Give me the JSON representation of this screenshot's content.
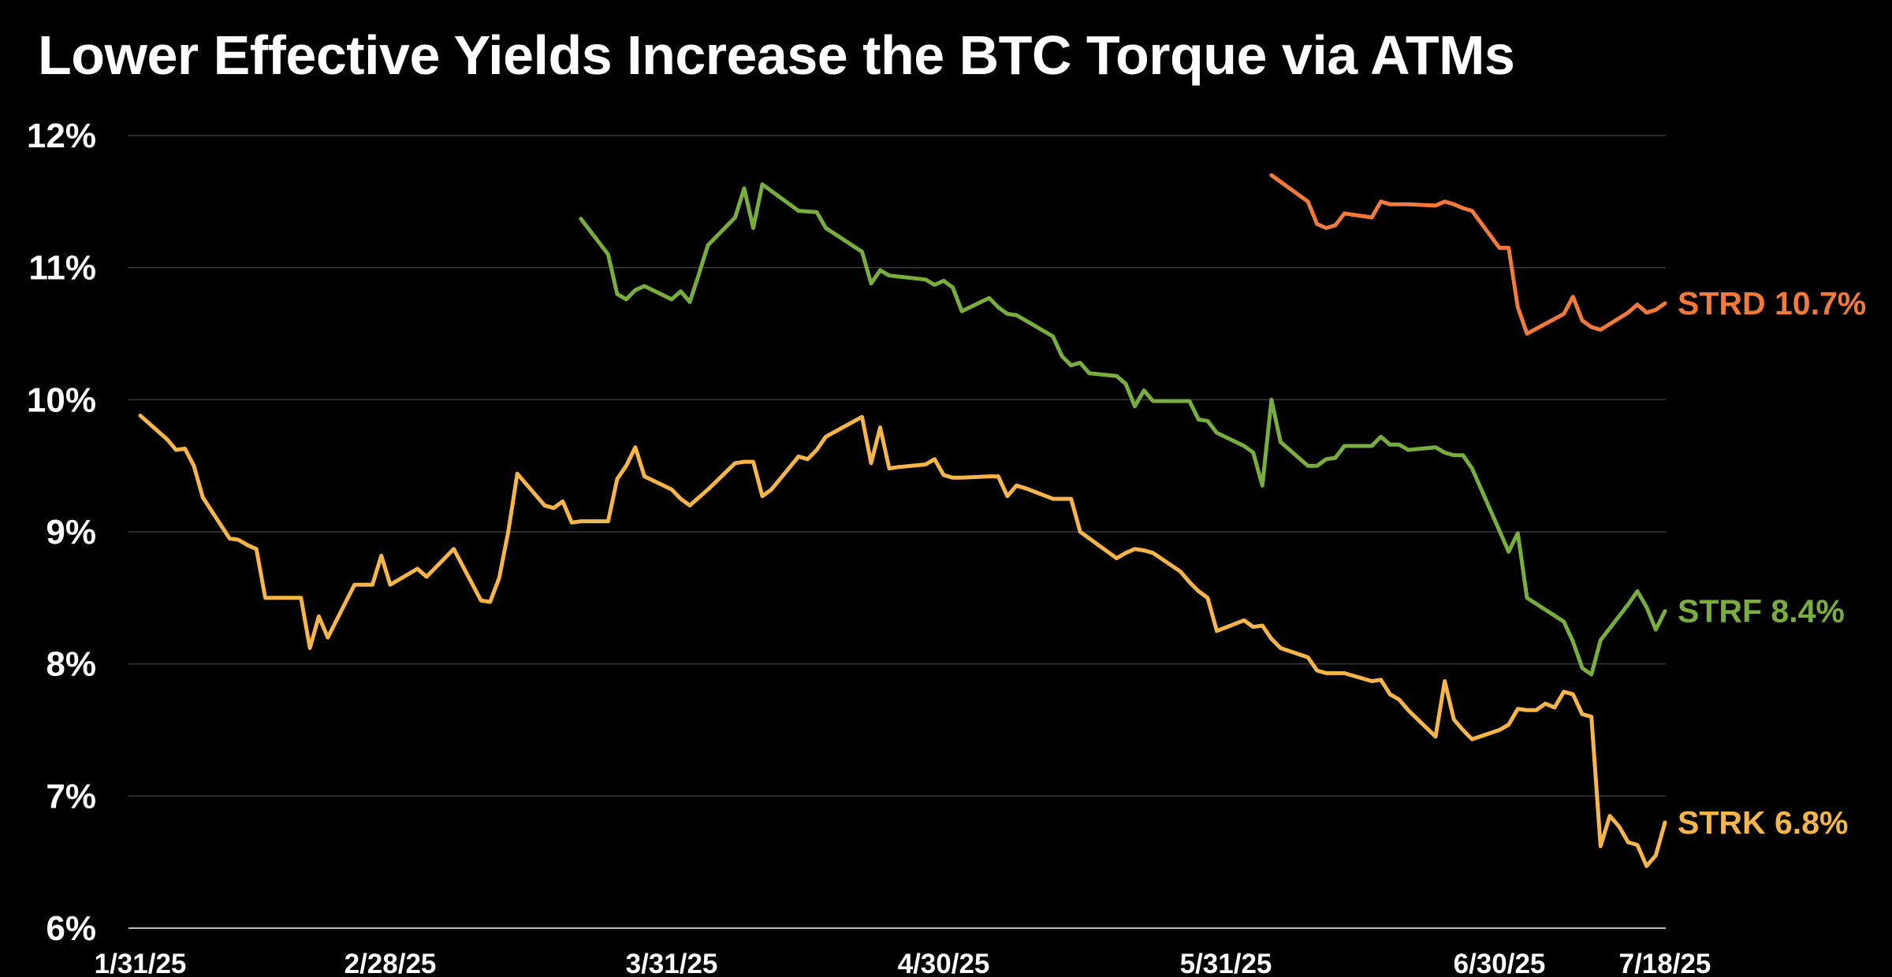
{
  "chart_data": {
    "type": "line",
    "title": "Lower Effective Yields Increase the BTC Torque via ATMs",
    "xlabel": "",
    "ylabel": "",
    "ylim": [
      6,
      12
    ],
    "y_ticks": [
      "6%",
      "7%",
      "8%",
      "9%",
      "10%",
      "11%",
      "12%"
    ],
    "x_ticks": [
      "1/31/25",
      "2/28/25",
      "3/31/25",
      "4/30/25",
      "5/31/25",
      "6/30/25",
      "7/18/25"
    ],
    "grid": "horizontal",
    "colors": {
      "STRD": "#F27A3C",
      "STRF": "#79AD3E",
      "STRK": "#F7B54A"
    },
    "series": [
      {
        "name": "STRD",
        "end_label": "STRD 10.7%",
        "points": [
          [
            "2025-06-05",
            11.7
          ],
          [
            "2025-06-09",
            11.5
          ],
          [
            "2025-06-10",
            11.33
          ],
          [
            "2025-06-11",
            11.3
          ],
          [
            "2025-06-12",
            11.32
          ],
          [
            "2025-06-13",
            11.41
          ],
          [
            "2025-06-16",
            11.38
          ],
          [
            "2025-06-17",
            11.5
          ],
          [
            "2025-06-18",
            11.48
          ],
          [
            "2025-06-20",
            11.48
          ],
          [
            "2025-06-23",
            11.47
          ],
          [
            "2025-06-24",
            11.5
          ],
          [
            "2025-06-25",
            11.48
          ],
          [
            "2025-06-26",
            11.45
          ],
          [
            "2025-06-27",
            11.43
          ],
          [
            "2025-06-30",
            11.15
          ],
          [
            "2025-07-01",
            11.15
          ],
          [
            "2025-07-02",
            10.7
          ],
          [
            "2025-07-03",
            10.5
          ],
          [
            "2025-07-07",
            10.65
          ],
          [
            "2025-07-08",
            10.78
          ],
          [
            "2025-07-09",
            10.6
          ],
          [
            "2025-07-10",
            10.55
          ],
          [
            "2025-07-11",
            10.53
          ],
          [
            "2025-07-14",
            10.66
          ],
          [
            "2025-07-15",
            10.72
          ],
          [
            "2025-07-16",
            10.66
          ],
          [
            "2025-07-17",
            10.68
          ],
          [
            "2025-07-18",
            10.73
          ]
        ]
      },
      {
        "name": "STRF",
        "end_label": "STRF 8.4%",
        "points": [
          [
            "2025-03-21",
            11.37
          ],
          [
            "2025-03-24",
            11.1
          ],
          [
            "2025-03-25",
            10.8
          ],
          [
            "2025-03-26",
            10.76
          ],
          [
            "2025-03-27",
            10.83
          ],
          [
            "2025-03-28",
            10.86
          ],
          [
            "2025-03-31",
            10.76
          ],
          [
            "2025-04-01",
            10.82
          ],
          [
            "2025-04-02",
            10.74
          ],
          [
            "2025-04-03",
            10.95
          ],
          [
            "2025-04-04",
            11.17
          ],
          [
            "2025-04-07",
            11.38
          ],
          [
            "2025-04-08",
            11.6
          ],
          [
            "2025-04-09",
            11.3
          ],
          [
            "2025-04-10",
            11.63
          ],
          [
            "2025-04-14",
            11.43
          ],
          [
            "2025-04-16",
            11.42
          ],
          [
            "2025-04-17",
            11.3
          ],
          [
            "2025-04-21",
            11.12
          ],
          [
            "2025-04-22",
            10.88
          ],
          [
            "2025-04-23",
            10.98
          ],
          [
            "2025-04-24",
            10.94
          ],
          [
            "2025-04-28",
            10.91
          ],
          [
            "2025-04-29",
            10.87
          ],
          [
            "2025-04-30",
            10.9
          ],
          [
            "2025-05-01",
            10.85
          ],
          [
            "2025-05-02",
            10.67
          ],
          [
            "2025-05-05",
            10.77
          ],
          [
            "2025-05-06",
            10.7
          ],
          [
            "2025-05-07",
            10.65
          ],
          [
            "2025-05-08",
            10.64
          ],
          [
            "2025-05-09",
            10.6
          ],
          [
            "2025-05-12",
            10.48
          ],
          [
            "2025-05-13",
            10.33
          ],
          [
            "2025-05-14",
            10.26
          ],
          [
            "2025-05-15",
            10.28
          ],
          [
            "2025-05-16",
            10.2
          ],
          [
            "2025-05-19",
            10.18
          ],
          [
            "2025-05-20",
            10.12
          ],
          [
            "2025-05-21",
            9.95
          ],
          [
            "2025-05-22",
            10.07
          ],
          [
            "2025-05-23",
            9.99
          ],
          [
            "2025-05-27",
            9.99
          ],
          [
            "2025-05-28",
            9.85
          ],
          [
            "2025-05-29",
            9.84
          ],
          [
            "2025-05-30",
            9.75
          ],
          [
            "2025-06-02",
            9.65
          ],
          [
            "2025-06-03",
            9.6
          ],
          [
            "2025-06-04",
            9.35
          ],
          [
            "2025-06-05",
            10.0
          ],
          [
            "2025-06-06",
            9.68
          ],
          [
            "2025-06-09",
            9.5
          ],
          [
            "2025-06-10",
            9.5
          ],
          [
            "2025-06-11",
            9.55
          ],
          [
            "2025-06-12",
            9.56
          ],
          [
            "2025-06-13",
            9.65
          ],
          [
            "2025-06-16",
            9.65
          ],
          [
            "2025-06-17",
            9.72
          ],
          [
            "2025-06-18",
            9.66
          ],
          [
            "2025-06-19",
            9.66
          ],
          [
            "2025-06-20",
            9.62
          ],
          [
            "2025-06-23",
            9.64
          ],
          [
            "2025-06-24",
            9.6
          ],
          [
            "2025-06-25",
            9.58
          ],
          [
            "2025-06-26",
            9.58
          ],
          [
            "2025-06-27",
            9.48
          ],
          [
            "2025-07-01",
            8.85
          ],
          [
            "2025-07-02",
            8.99
          ],
          [
            "2025-07-03",
            8.5
          ],
          [
            "2025-07-07",
            8.32
          ],
          [
            "2025-07-08",
            8.17
          ],
          [
            "2025-07-09",
            7.97
          ],
          [
            "2025-07-10",
            7.92
          ],
          [
            "2025-07-11",
            8.18
          ],
          [
            "2025-07-14",
            8.45
          ],
          [
            "2025-07-15",
            8.55
          ],
          [
            "2025-07-16",
            8.43
          ],
          [
            "2025-07-17",
            8.26
          ],
          [
            "2025-07-18",
            8.4
          ]
        ]
      },
      {
        "name": "STRK",
        "end_label": "STRK 6.8%",
        "points": [
          [
            "2025-01-31",
            9.88
          ],
          [
            "2025-02-03",
            9.7
          ],
          [
            "2025-02-04",
            9.62
          ],
          [
            "2025-02-05",
            9.63
          ],
          [
            "2025-02-06",
            9.5
          ],
          [
            "2025-02-07",
            9.26
          ],
          [
            "2025-02-10",
            8.95
          ],
          [
            "2025-02-11",
            8.94
          ],
          [
            "2025-02-12",
            8.9
          ],
          [
            "2025-02-13",
            8.87
          ],
          [
            "2025-02-14",
            8.5
          ],
          [
            "2025-02-18",
            8.5
          ],
          [
            "2025-02-19",
            8.12
          ],
          [
            "2025-02-20",
            8.36
          ],
          [
            "2025-02-21",
            8.2
          ],
          [
            "2025-02-24",
            8.6
          ],
          [
            "2025-02-25",
            8.6
          ],
          [
            "2025-02-26",
            8.6
          ],
          [
            "2025-02-27",
            8.82
          ],
          [
            "2025-02-28",
            8.6
          ],
          [
            "2025-03-03",
            8.72
          ],
          [
            "2025-03-04",
            8.66
          ],
          [
            "2025-03-05",
            8.73
          ],
          [
            "2025-03-06",
            8.8
          ],
          [
            "2025-03-07",
            8.87
          ],
          [
            "2025-03-10",
            8.48
          ],
          [
            "2025-03-11",
            8.47
          ],
          [
            "2025-03-12",
            8.65
          ],
          [
            "2025-03-13",
            9.0
          ],
          [
            "2025-03-14",
            9.44
          ],
          [
            "2025-03-17",
            9.2
          ],
          [
            "2025-03-18",
            9.18
          ],
          [
            "2025-03-19",
            9.23
          ],
          [
            "2025-03-20",
            9.07
          ],
          [
            "2025-03-21",
            9.08
          ],
          [
            "2025-03-24",
            9.08
          ],
          [
            "2025-03-25",
            9.4
          ],
          [
            "2025-03-26",
            9.5
          ],
          [
            "2025-03-27",
            9.64
          ],
          [
            "2025-03-28",
            9.42
          ],
          [
            "2025-03-31",
            9.32
          ],
          [
            "2025-04-01",
            9.25
          ],
          [
            "2025-04-02",
            9.2
          ],
          [
            "2025-04-03",
            9.26
          ],
          [
            "2025-04-04",
            9.32
          ],
          [
            "2025-04-07",
            9.52
          ],
          [
            "2025-04-08",
            9.53
          ],
          [
            "2025-04-09",
            9.53
          ],
          [
            "2025-04-10",
            9.27
          ],
          [
            "2025-04-11",
            9.32
          ],
          [
            "2025-04-14",
            9.57
          ],
          [
            "2025-04-15",
            9.55
          ],
          [
            "2025-04-16",
            9.62
          ],
          [
            "2025-04-17",
            9.72
          ],
          [
            "2025-04-21",
            9.87
          ],
          [
            "2025-04-22",
            9.52
          ],
          [
            "2025-04-23",
            9.79
          ],
          [
            "2025-04-24",
            9.48
          ],
          [
            "2025-04-25",
            9.49
          ],
          [
            "2025-04-28",
            9.51
          ],
          [
            "2025-04-29",
            9.55
          ],
          [
            "2025-04-30",
            9.43
          ],
          [
            "2025-05-01",
            9.41
          ],
          [
            "2025-05-02",
            9.41
          ],
          [
            "2025-05-05",
            9.42
          ],
          [
            "2025-05-06",
            9.42
          ],
          [
            "2025-05-07",
            9.27
          ],
          [
            "2025-05-08",
            9.35
          ],
          [
            "2025-05-09",
            9.33
          ],
          [
            "2025-05-12",
            9.25
          ],
          [
            "2025-05-13",
            9.25
          ],
          [
            "2025-05-14",
            9.25
          ],
          [
            "2025-05-15",
            9.0
          ],
          [
            "2025-05-16",
            8.95
          ],
          [
            "2025-05-19",
            8.8
          ],
          [
            "2025-05-20",
            8.84
          ],
          [
            "2025-05-21",
            8.87
          ],
          [
            "2025-05-22",
            8.86
          ],
          [
            "2025-05-23",
            8.84
          ],
          [
            "2025-05-26",
            8.7
          ],
          [
            "2025-05-27",
            8.62
          ],
          [
            "2025-05-28",
            8.55
          ],
          [
            "2025-05-29",
            8.5
          ],
          [
            "2025-05-30",
            8.25
          ],
          [
            "2025-06-02",
            8.33
          ],
          [
            "2025-06-03",
            8.28
          ],
          [
            "2025-06-04",
            8.29
          ],
          [
            "2025-06-05",
            8.19
          ],
          [
            "2025-06-06",
            8.12
          ],
          [
            "2025-06-09",
            8.05
          ],
          [
            "2025-06-10",
            7.95
          ],
          [
            "2025-06-11",
            7.93
          ],
          [
            "2025-06-12",
            7.93
          ],
          [
            "2025-06-13",
            7.93
          ],
          [
            "2025-06-16",
            7.87
          ],
          [
            "2025-06-17",
            7.88
          ],
          [
            "2025-06-18",
            7.77
          ],
          [
            "2025-06-19",
            7.73
          ],
          [
            "2025-06-20",
            7.65
          ],
          [
            "2025-06-23",
            7.45
          ],
          [
            "2025-06-24",
            7.87
          ],
          [
            "2025-06-25",
            7.58
          ],
          [
            "2025-06-26",
            7.5
          ],
          [
            "2025-06-27",
            7.43
          ],
          [
            "2025-06-30",
            7.5
          ],
          [
            "2025-07-01",
            7.54
          ],
          [
            "2025-07-02",
            7.66
          ],
          [
            "2025-07-03",
            7.65
          ],
          [
            "2025-07-04",
            7.65
          ],
          [
            "2025-07-05",
            7.7
          ],
          [
            "2025-07-06",
            7.67
          ],
          [
            "2025-07-07",
            7.79
          ],
          [
            "2025-07-08",
            7.77
          ],
          [
            "2025-07-09",
            7.62
          ],
          [
            "2025-07-10",
            7.6
          ],
          [
            "2025-07-11",
            6.62
          ],
          [
            "2025-07-12",
            6.85
          ],
          [
            "2025-07-13",
            6.77
          ],
          [
            "2025-07-14",
            6.65
          ],
          [
            "2025-07-15",
            6.63
          ],
          [
            "2025-07-16",
            6.47
          ],
          [
            "2025-07-17",
            6.55
          ],
          [
            "2025-07-18",
            6.8
          ]
        ]
      }
    ]
  }
}
